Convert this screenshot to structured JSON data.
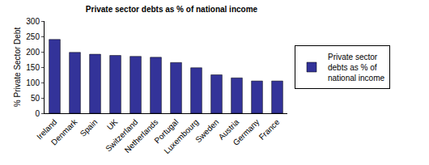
{
  "chart_data": {
    "type": "bar",
    "title": "Private sector debts as % of national income",
    "y_label": "% Private Sector Debt",
    "categories": [
      "Ireland",
      "Denmark",
      "Spain",
      "UK",
      "Switzerland",
      "Netherlands",
      "Portugal",
      "Luxembourg",
      "Sweden",
      "Austria",
      "Germany",
      "France"
    ],
    "series": [
      {
        "name": "Private sector debts as % of national income",
        "color": "#333399",
        "values": [
          240,
          198,
          192,
          188,
          185,
          182,
          165,
          148,
          125,
          115,
          105,
          105
        ]
      }
    ],
    "ylim": [
      0,
      300
    ],
    "yticks": [
      0,
      50,
      100,
      150,
      200,
      250,
      300
    ],
    "grid": false,
    "legend": "right"
  }
}
